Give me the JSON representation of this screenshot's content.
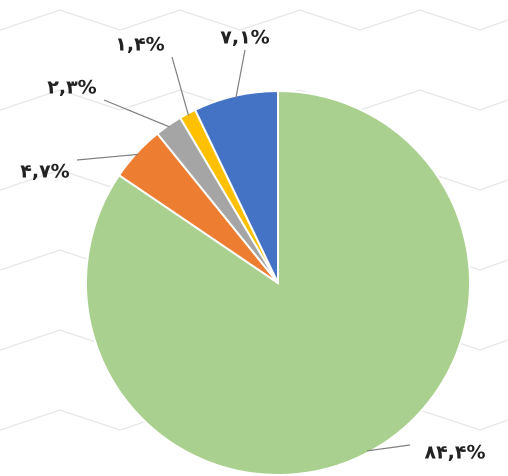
{
  "chart_data": {
    "type": "pie",
    "values": [
      84.4,
      4.7,
      2.3,
      1.4,
      7.1
    ],
    "value_labels": [
      "۸۴,۴%",
      "۴,۷%",
      "۲,۳%",
      "۱,۴%",
      "۷,۱%"
    ],
    "colors": [
      "#a9d08e",
      "#ed7d31",
      "#a5a5a5",
      "#ffc000",
      "#4472c4"
    ]
  }
}
